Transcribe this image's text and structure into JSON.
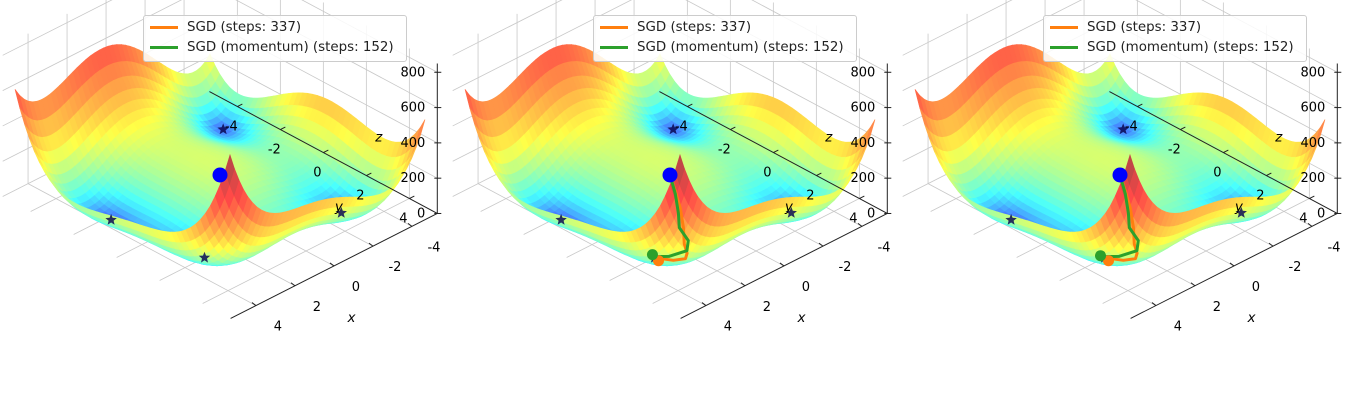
{
  "chart_data": [
    {
      "type": "surface",
      "axes": {
        "x_label": "x",
        "y_label": "y",
        "z_label": "z",
        "x_ticks": [
          "-4",
          "-2",
          "0",
          "2",
          "4"
        ],
        "y_ticks": [
          "-4",
          "-2",
          "0",
          "2",
          "4"
        ],
        "z_ticks": [
          "0",
          "200",
          "400",
          "600",
          "800"
        ],
        "zlim": [
          0,
          850
        ],
        "grid": true
      },
      "legend": {
        "location": "upper-center",
        "series": [
          {
            "name": "SGD (steps: 337)",
            "color": "#ff7f0e"
          },
          {
            "name": "SGD (momentum) (steps: 152)",
            "color": "#2ca02c"
          }
        ]
      },
      "start_point": {
        "x": 0,
        "y": 0,
        "color": "#0000ff"
      },
      "minima": [
        {
          "x": 3.0,
          "y": 2.0
        },
        {
          "x": -2.8,
          "y": 3.1
        },
        {
          "x": -3.8,
          "y": -3.3
        },
        {
          "x": 3.6,
          "y": -1.8
        }
      ],
      "paths": []
    },
    {
      "type": "surface",
      "axes": {
        "x_label": "x",
        "y_label": "y",
        "z_label": "z",
        "x_ticks": [
          "-4",
          "-2",
          "0",
          "2",
          "4"
        ],
        "y_ticks": [
          "-4",
          "-2",
          "0",
          "2",
          "4"
        ],
        "z_ticks": [
          "0",
          "200",
          "400",
          "600",
          "800"
        ],
        "zlim": [
          0,
          850
        ],
        "grid": true
      },
      "legend": {
        "location": "upper-center",
        "series": [
          {
            "name": "SGD (steps: 337)",
            "color": "#ff7f0e"
          },
          {
            "name": "SGD (momentum) (steps: 152)",
            "color": "#2ca02c"
          }
        ]
      },
      "start_point": {
        "x": 0,
        "y": 0,
        "color": "#0000ff"
      },
      "minima": [
        {
          "x": 3.0,
          "y": 2.0
        },
        {
          "x": -2.8,
          "y": 3.1
        },
        {
          "x": -3.8,
          "y": -3.3
        },
        {
          "x": 3.6,
          "y": -1.8
        }
      ],
      "paths": [
        {
          "name": "SGD (steps: 337)",
          "color": "#ff7f0e",
          "points": [
            [
              0,
              0
            ],
            [
              0.4,
              0.6
            ],
            [
              0.8,
              1.2
            ],
            [
              1.3,
              1.8
            ],
            [
              1.8,
              2.3
            ],
            [
              2.1,
              2.7
            ],
            [
              2.4,
              2.9
            ],
            [
              2.7,
              2.6
            ],
            [
              3.0,
              2.0
            ]
          ]
        },
        {
          "name": "SGD (momentum) (steps: 152)",
          "color": "#2ca02c",
          "points": [
            [
              0,
              0
            ],
            [
              0.5,
              0.7
            ],
            [
              1.0,
              1.3
            ],
            [
              1.4,
              1.7
            ],
            [
              1.6,
              2.3
            ],
            [
              2.0,
              2.6
            ],
            [
              2.6,
              2.3
            ],
            [
              2.9,
              2.0
            ],
            [
              3.1,
              2.1
            ],
            [
              2.9,
              2.0
            ]
          ]
        }
      ]
    },
    {
      "type": "surface",
      "axes": {
        "x_label": "x",
        "y_label": "y",
        "z_label": "z",
        "x_ticks": [
          "-4",
          "-2",
          "0",
          "2",
          "4"
        ],
        "y_ticks": [
          "-4",
          "-2",
          "0",
          "2",
          "4"
        ],
        "z_ticks": [
          "0",
          "200",
          "400",
          "600",
          "800"
        ],
        "zlim": [
          0,
          850
        ],
        "grid": true
      },
      "legend": {
        "location": "upper-center",
        "series": [
          {
            "name": "SGD (steps: 337)",
            "color": "#ff7f0e"
          },
          {
            "name": "SGD (momentum) (steps: 152)",
            "color": "#2ca02c"
          }
        ]
      },
      "start_point": {
        "x": 0,
        "y": 0,
        "color": "#0000ff"
      },
      "minima": [
        {
          "x": 3.0,
          "y": 2.0
        },
        {
          "x": -2.8,
          "y": 3.1
        },
        {
          "x": -3.8,
          "y": -3.3
        },
        {
          "x": 3.6,
          "y": -1.8
        }
      ],
      "paths": [
        {
          "name": "SGD (steps: 337)",
          "color": "#ff7f0e",
          "points": [
            [
              0,
              0
            ],
            [
              0.4,
              0.6
            ],
            [
              0.8,
              1.2
            ],
            [
              1.3,
              1.8
            ],
            [
              1.8,
              2.3
            ],
            [
              2.1,
              2.7
            ],
            [
              2.4,
              2.9
            ],
            [
              2.7,
              2.6
            ],
            [
              3.0,
              2.0
            ]
          ]
        },
        {
          "name": "SGD (momentum) (steps: 152)",
          "color": "#2ca02c",
          "points": [
            [
              0,
              0
            ],
            [
              0.5,
              0.7
            ],
            [
              1.0,
              1.3
            ],
            [
              1.4,
              1.7
            ],
            [
              1.6,
              2.3
            ],
            [
              2.0,
              2.6
            ],
            [
              2.6,
              2.3
            ],
            [
              2.9,
              2.0
            ],
            [
              3.1,
              2.1
            ],
            [
              3.0,
              2.0
            ]
          ]
        }
      ]
    }
  ]
}
